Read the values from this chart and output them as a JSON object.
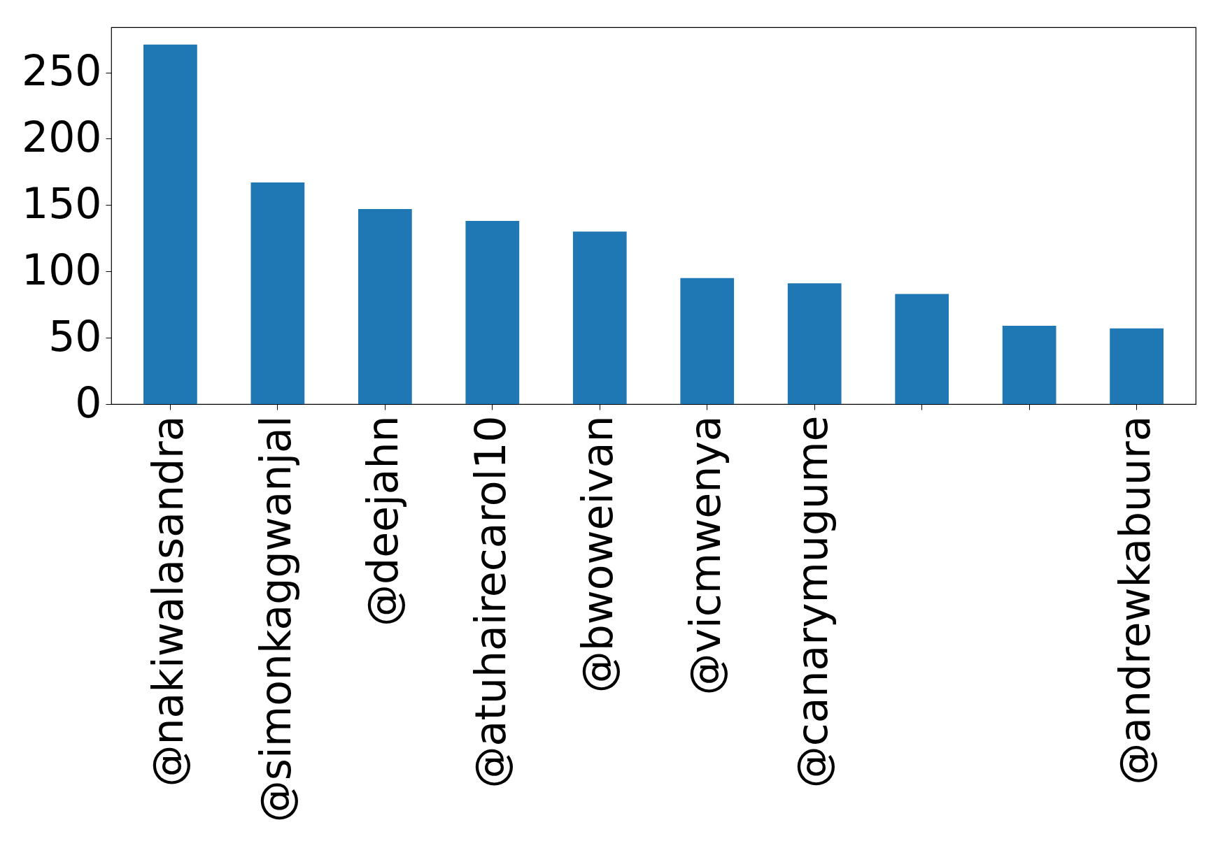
{
  "chart_data": {
    "type": "bar",
    "categories": [
      "@nakiwalasandra",
      "@simonkaggwanjal",
      "@deejahn",
      "@atuhairecarol10",
      "@bwoweivan",
      "@vicmwenya",
      "@canarymugume",
      null,
      null,
      "@andrewkabuura"
    ],
    "values": [
      271,
      167,
      147,
      138,
      130,
      95,
      91,
      83,
      59,
      57
    ],
    "color": "#1f77b4",
    "ylim": [
      0,
      284
    ],
    "yticks": [
      0,
      50,
      100,
      150,
      200,
      250
    ],
    "grid": false
  }
}
